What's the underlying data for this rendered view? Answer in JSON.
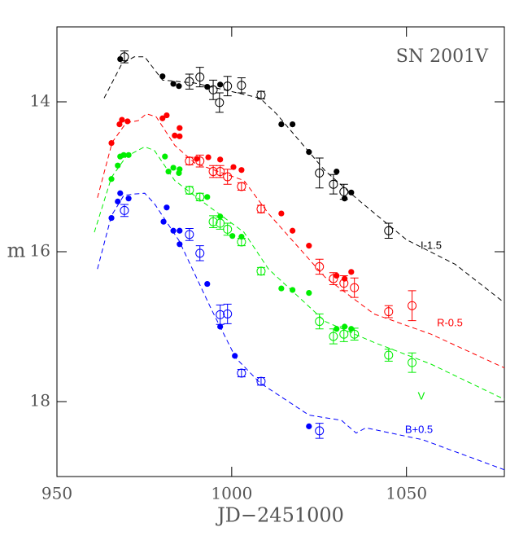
{
  "chart_data": {
    "type": "lightcurve",
    "title": "SN 2001V",
    "x_label": "JD−2451000",
    "y_label": "m",
    "xlim": [
      950,
      1078
    ],
    "xticks": [
      950,
      1000,
      1050
    ],
    "ylim": [
      13,
      19
    ],
    "yticks": [
      14,
      16,
      18
    ],
    "invert_y": true,
    "series": [
      {
        "name": "I-1.5",
        "color": "#000000",
        "filled_x": [
          968.1,
          980.2,
          983.3,
          984.9,
          993.0,
          996.7,
          1014.2,
          1017.4,
          1022.1,
          1030.0,
          1032.3,
          1034.2
        ],
        "filled_y": [
          13.43,
          13.66,
          13.76,
          13.79,
          13.8,
          13.77,
          14.3,
          14.3,
          14.67,
          14.93,
          15.29,
          15.21
        ],
        "open_x": [
          969.3,
          987.9,
          990.9,
          994.7,
          996.5,
          998.8,
          1002.8,
          1008.4,
          1025.1,
          1029.1,
          1032.1,
          1044.9
        ],
        "open_y": [
          13.4,
          13.73,
          13.67,
          13.84,
          14.01,
          13.79,
          13.78,
          13.91,
          14.95,
          15.1,
          15.2,
          15.72
        ],
        "open_err": [
          0.08,
          0.1,
          0.13,
          0.13,
          0.13,
          0.13,
          0.1,
          0.05,
          0.2,
          0.13,
          0.1,
          0.1
        ],
        "template_x": [
          963.5,
          968.6,
          972.1,
          975.1,
          977.9,
          980.2,
          989.5,
          1008.1,
          1012.8,
          1026.7,
          1036.0,
          1050,
          1064,
          1078
        ],
        "template_y": [
          13.95,
          13.49,
          13.4,
          13.4,
          13.57,
          13.71,
          13.75,
          13.95,
          14.16,
          14.92,
          15.3,
          15.84,
          16.17,
          16.68
        ]
      },
      {
        "name": "R-0.5",
        "color": "#ff0000",
        "filled_x": [
          965.6,
          967.9,
          968.6,
          970.2,
          980.2,
          981.4,
          983.7,
          985.1,
          985.1,
          990.0,
          993.3,
          996.7,
          1000.5,
          1002.8,
          1014.2,
          1017.4,
          1022.1,
          1030.0,
          1032.3,
          1034.2
        ],
        "filled_y": [
          14.55,
          14.3,
          14.24,
          14.26,
          14.22,
          14.18,
          14.45,
          14.35,
          14.46,
          14.76,
          14.74,
          14.77,
          14.87,
          14.91,
          15.49,
          15.72,
          15.92,
          16.32,
          16.36,
          16.27
        ],
        "open_x": [
          987.9,
          990.9,
          994.7,
          996.7,
          998.8,
          1002.8,
          1008.4,
          1025.1,
          1029.1,
          1032.1,
          1035.1,
          1044.9,
          1051.6
        ],
        "open_y": [
          14.79,
          14.79,
          14.93,
          14.93,
          15.0,
          15.13,
          15.43,
          16.2,
          16.36,
          16.42,
          16.48,
          16.8,
          16.72
        ],
        "open_err": [
          0.05,
          0.08,
          0.08,
          0.08,
          0.1,
          0.05,
          0.05,
          0.1,
          0.08,
          0.1,
          0.13,
          0.08,
          0.2
        ],
        "template_x": [
          961.6,
          965.8,
          969.8,
          973.3,
          975.6,
          978.4,
          983.7,
          989.5,
          1003.5,
          1010.5,
          1026.7,
          1040.7,
          1057,
          1078
        ],
        "template_y": [
          15.28,
          14.54,
          14.28,
          14.25,
          14.16,
          14.2,
          14.58,
          14.82,
          15.05,
          15.49,
          16.34,
          16.83,
          17.1,
          17.55
        ]
      },
      {
        "name": "V",
        "color": "#00ee00",
        "filled_x": [
          965.6,
          967.4,
          968.1,
          969.1,
          970.5,
          980.9,
          981.9,
          983.3,
          985.1,
          984.9,
          993.0,
          996.7,
          1000.2,
          1002.8,
          1014.2,
          1017.4,
          1022.1,
          1030.0,
          1032.3,
          1034.2
        ],
        "filled_y": [
          15.03,
          14.85,
          14.73,
          14.71,
          14.71,
          14.73,
          14.93,
          14.88,
          14.9,
          14.95,
          15.27,
          15.53,
          15.79,
          15.8,
          16.49,
          16.51,
          16.55,
          17.03,
          17.0,
          17.03
        ],
        "open_x": [
          987.9,
          990.9,
          994.7,
          996.7,
          998.8,
          1002.8,
          1008.4,
          1025.1,
          1029.1,
          1032.1,
          1035.1,
          1044.9,
          1051.6
        ],
        "open_y": [
          15.18,
          15.27,
          15.6,
          15.62,
          15.7,
          15.87,
          16.26,
          16.93,
          17.13,
          17.1,
          17.1,
          17.38,
          17.48
        ],
        "open_err": [
          0.05,
          0.05,
          0.08,
          0.08,
          0.08,
          0.05,
          0.05,
          0.1,
          0.1,
          0.1,
          0.08,
          0.08,
          0.13
        ],
        "template_x": [
          960.7,
          965.6,
          969.8,
          975.1,
          977.9,
          983.7,
          990.7,
          1003.5,
          1010.5,
          1026.7,
          1040.7,
          1057,
          1078
        ],
        "template_y": [
          15.74,
          15.01,
          14.73,
          14.6,
          14.65,
          15.05,
          15.3,
          15.74,
          16.23,
          16.93,
          17.21,
          17.5,
          17.97
        ]
      },
      {
        "name": "B+0.5",
        "color": "#0000ff",
        "filled_x": [
          965.6,
          967.4,
          968.1,
          970.5,
          980.5,
          981.4,
          983.3,
          985.1,
          985.1,
          993.0,
          996.7,
          1000.9,
          1022.1
        ],
        "filled_y": [
          15.55,
          15.33,
          15.22,
          15.29,
          15.6,
          15.41,
          15.72,
          15.9,
          15.72,
          16.43,
          17.0,
          17.39,
          18.33
        ],
        "open_x": [
          969.3,
          987.9,
          990.9,
          996.7,
          998.8,
          1002.8,
          1008.4,
          1025.1
        ],
        "open_y": [
          15.45,
          15.77,
          16.02,
          16.84,
          16.83,
          17.62,
          17.73,
          18.39
        ],
        "open_err": [
          0.08,
          0.08,
          0.1,
          0.13,
          0.13,
          0.05,
          0.05,
          0.1
        ],
        "template_x": [
          961.6,
          965.6,
          969.1,
          972.1,
          975.1,
          977.9,
          984.9,
          994.2,
          1001.2,
          1008.1,
          1022.1,
          1031.4,
          1035.6,
          1038.4,
          1054.7,
          1078
        ],
        "template_y": [
          16.23,
          15.52,
          15.25,
          15.23,
          15.22,
          15.36,
          15.85,
          16.77,
          17.42,
          17.75,
          18.18,
          18.25,
          18.42,
          18.35,
          18.51,
          18.91
        ]
      }
    ]
  }
}
